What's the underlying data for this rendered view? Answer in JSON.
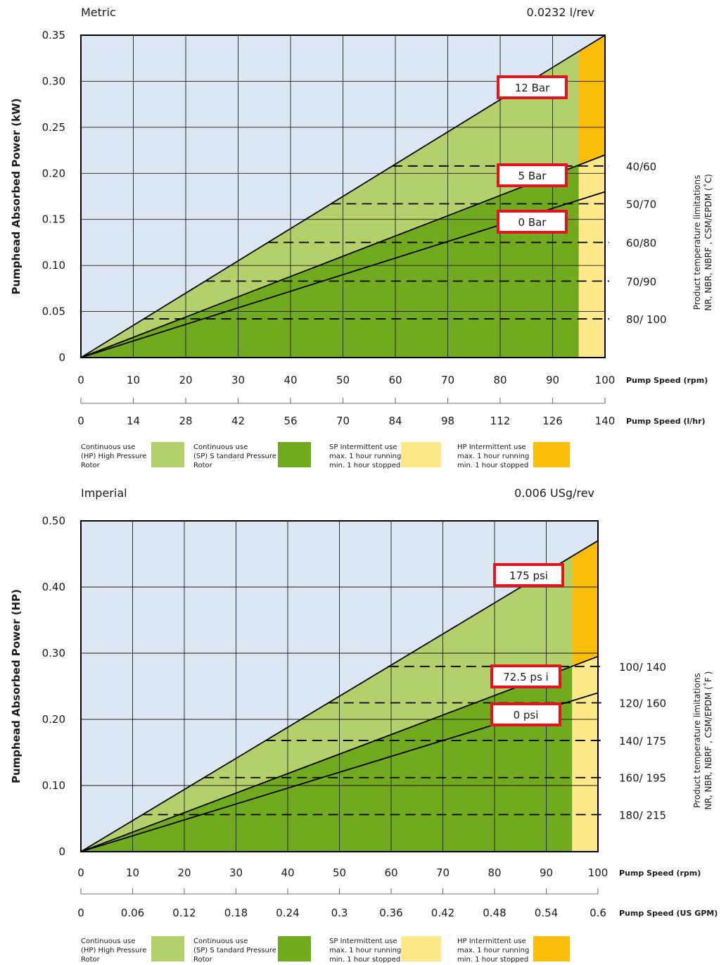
{
  "colors": {
    "background": "#dde7f3",
    "hp_continuous": "#b3d06b",
    "sp_continuous": "#72aa1f",
    "sp_intermittent": "#fde88a",
    "hp_intermittent": "#fbbd0a",
    "label_border": "#e3141e",
    "grid": "#1a1a1a"
  },
  "chart_data": [
    {
      "type": "area",
      "system": "Metric",
      "displacement": "0.0232 l/rev",
      "ylabel": "Pumphead Absorbed Power (kW)",
      "xlabel": "Pump Speed (rpm)",
      "xlabel2": "Pump Speed (l/hr)",
      "xlim": [
        0,
        100
      ],
      "ylim": [
        0,
        0.35
      ],
      "x_ticks": [
        "0",
        "10",
        "20",
        "30",
        "40",
        "50",
        "60",
        "70",
        "80",
        "90",
        "100"
      ],
      "x2_ticks": [
        "0",
        "14",
        "28",
        "42",
        "56",
        "70",
        "84",
        "98",
        "112",
        "126",
        "140"
      ],
      "y_ticks": [
        {
          "value": 0,
          "label": "0"
        },
        {
          "value": 0.05,
          "label": "0.05"
        },
        {
          "value": 0.1,
          "label": "0.10"
        },
        {
          "value": 0.15,
          "label": "0.15"
        },
        {
          "value": 0.2,
          "label": "0.20"
        },
        {
          "value": 0.25,
          "label": "0.25"
        },
        {
          "value": 0.3,
          "label": "0.30"
        },
        {
          "value": 0.35,
          "label": "0.35"
        }
      ],
      "continuous_limit_rpm": 95,
      "series": [
        {
          "name": "12 Bar",
          "x": [
            0,
            100
          ],
          "y": [
            0,
            0.35
          ]
        },
        {
          "name": "5 Bar",
          "x": [
            0,
            100
          ],
          "y": [
            0,
            0.22
          ]
        },
        {
          "name": "0 Bar",
          "x": [
            0,
            100
          ],
          "y": [
            0,
            0.18
          ]
        }
      ],
      "temperature_caption": [
        "Product temperature limitations",
        "NR, NBR, NBRF , CSM/EPDM (˚C)"
      ],
      "temperature_limits": [
        {
          "label": "40/60",
          "power": 0.208
        },
        {
          "label": "50/70",
          "power": 0.167
        },
        {
          "label": "60/80",
          "power": 0.125
        },
        {
          "label": "70/90",
          "power": 0.083
        },
        {
          "label": "80/ 100",
          "power": 0.042
        }
      ],
      "legend": [
        {
          "key": "hp_continuous",
          "lines": [
            "Continuous use",
            "(HP) High Pressure",
            "Rotor"
          ]
        },
        {
          "key": "sp_continuous",
          "lines": [
            "Continuous use",
            "(SP) S tandard Pressure",
            "Rotor"
          ]
        },
        {
          "key": "sp_intermittent",
          "lines": [
            "SP Intermittent use",
            "max. 1 hour running",
            "min. 1 hour stopped"
          ]
        },
        {
          "key": "hp_intermittent",
          "lines": [
            "HP Intermittent use",
            "max. 1 hour running",
            "min. 1 hour stopped"
          ]
        }
      ]
    },
    {
      "type": "area",
      "system": "Imperial",
      "displacement": "0.006 USg/rev",
      "ylabel": "Pumphead Absorbed Power (HP)",
      "xlabel": "Pump Speed (rpm)",
      "xlabel2": "Pump Speed (US GPM)",
      "xlim": [
        0,
        100
      ],
      "ylim": [
        0,
        0.5
      ],
      "x_ticks": [
        "0",
        "10",
        "20",
        "30",
        "40",
        "50",
        "60",
        "70",
        "80",
        "90",
        "100"
      ],
      "x2_ticks": [
        "0",
        "0.06",
        "0.12",
        "0.18",
        "0.24",
        "0.3",
        "0.36",
        "0.42",
        "0.48",
        "0.54",
        "0.6"
      ],
      "y_ticks": [
        {
          "value": 0,
          "label": "0"
        },
        {
          "value": 0.1,
          "label": "0.10"
        },
        {
          "value": 0.2,
          "label": "0.20"
        },
        {
          "value": 0.3,
          "label": "0.30"
        },
        {
          "value": 0.4,
          "label": "0.40"
        },
        {
          "value": 0.5,
          "label": "0.50"
        }
      ],
      "continuous_limit_rpm": 95,
      "series": [
        {
          "name": "175 psi",
          "x": [
            0,
            100
          ],
          "y": [
            0,
            0.47
          ]
        },
        {
          "name": "72.5 ps i",
          "x": [
            0,
            100
          ],
          "y": [
            0,
            0.295
          ]
        },
        {
          "name": "0 psi",
          "x": [
            0,
            100
          ],
          "y": [
            0,
            0.24
          ]
        }
      ],
      "temperature_caption": [
        "Product temperature limitations",
        "NR, NBR, NBRF , CSM/EPDM (˚F )"
      ],
      "temperature_limits": [
        {
          "label": "100/ 140",
          "power": 0.28
        },
        {
          "label": "120/ 160",
          "power": 0.225
        },
        {
          "label": "140/ 175",
          "power": 0.168
        },
        {
          "label": "160/ 195",
          "power": 0.112
        },
        {
          "label": "180/ 215",
          "power": 0.056
        }
      ],
      "legend": [
        {
          "key": "hp_continuous",
          "lines": [
            "Continuous use",
            "(HP) High Pressure",
            "Rotor"
          ]
        },
        {
          "key": "sp_continuous",
          "lines": [
            "Continuous use",
            "(SP) S tandard Pressure",
            "Rotor"
          ]
        },
        {
          "key": "sp_intermittent",
          "lines": [
            "SP Intermittent use",
            "max. 1 hour running",
            "min. 1 hour stopped"
          ]
        },
        {
          "key": "hp_intermittent",
          "lines": [
            "HP Intermittent use",
            "max. 1 hour running",
            "min. 1 hour stopped"
          ]
        }
      ]
    }
  ]
}
